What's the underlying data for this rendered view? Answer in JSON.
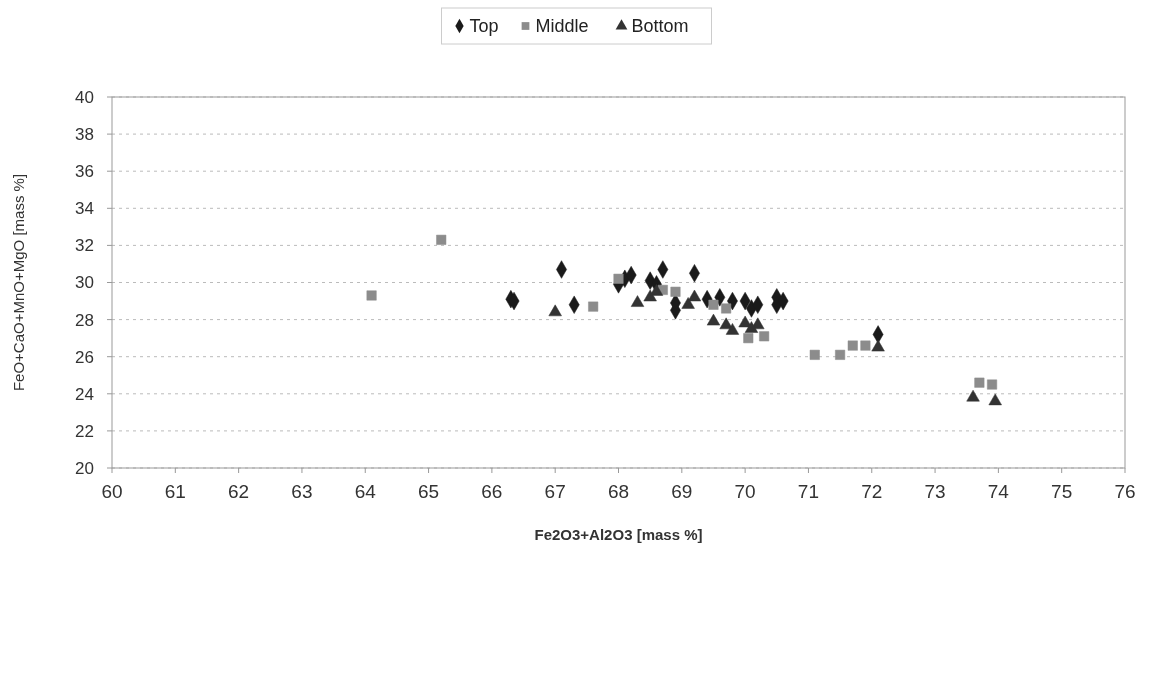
{
  "chart_data": {
    "type": "scatter",
    "xlabel": "Fe2O3+Al2O3 [mass %]",
    "ylabel": "FeO+CaO+MnO+MgO [mass %]",
    "xlim": [
      60,
      76
    ],
    "xticks": [
      60,
      61,
      62,
      63,
      64,
      65,
      66,
      67,
      68,
      69,
      70,
      71,
      72,
      73,
      74,
      75,
      76
    ],
    "ylim": [
      20,
      40
    ],
    "yticks": [
      20,
      22,
      24,
      26,
      28,
      30,
      32,
      34,
      36,
      38,
      40
    ],
    "grid": "y",
    "legend": "top",
    "series": [
      {
        "name": "Top",
        "color": "#1a1a1a",
        "marker": "diamond",
        "x": [
          66.3,
          66.35,
          67.1,
          67.3,
          68.0,
          68.1,
          68.2,
          68.5,
          68.7,
          68.6,
          68.9,
          68.9,
          69.2,
          69.4,
          69.6,
          69.8,
          70.0,
          70.1,
          70.2,
          70.5,
          70.5,
          70.6,
          72.1
        ],
        "values": [
          29.1,
          29.0,
          30.7,
          28.8,
          29.9,
          30.2,
          30.4,
          30.1,
          30.7,
          29.9,
          28.5,
          28.9,
          30.5,
          29.1,
          29.2,
          29.0,
          29.0,
          28.6,
          28.8,
          29.2,
          28.8,
          29.0,
          27.2
        ]
      },
      {
        "name": "Middle",
        "color": "#8c8c8c",
        "marker": "square",
        "x": [
          64.1,
          65.2,
          67.6,
          68.0,
          68.7,
          68.9,
          69.5,
          69.7,
          70.05,
          70.3,
          71.1,
          71.5,
          71.7,
          71.9,
          73.7,
          73.9
        ],
        "values": [
          29.3,
          32.3,
          28.7,
          30.2,
          29.6,
          29.5,
          28.8,
          28.6,
          27.0,
          27.1,
          26.1,
          26.1,
          26.6,
          26.6,
          24.6,
          24.5
        ]
      },
      {
        "name": "Bottom",
        "color": "#333333",
        "marker": "triangle",
        "x": [
          67.0,
          68.3,
          68.5,
          68.6,
          69.1,
          69.2,
          69.5,
          69.7,
          69.8,
          70.0,
          70.2,
          70.1,
          72.1,
          73.6,
          73.95
        ],
        "values": [
          28.4,
          28.9,
          29.2,
          29.5,
          28.8,
          29.2,
          27.9,
          27.7,
          27.4,
          27.8,
          27.7,
          27.5,
          26.5,
          23.8,
          23.6
        ]
      }
    ]
  }
}
